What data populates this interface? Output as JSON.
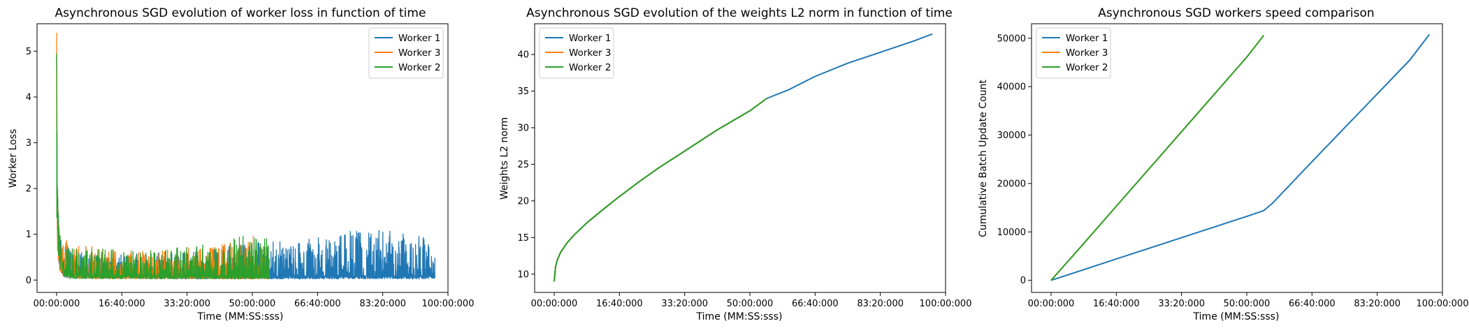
{
  "colors": {
    "Worker 1": "#1f77b4",
    "Worker 3": "#ff7f0e",
    "Worker 2": "#2ca02c"
  },
  "chart_data": [
    {
      "type": "line",
      "title": "Asynchronous SGD evolution of worker loss in function of time",
      "xlabel": "Time (MM:SS:sss)",
      "ylabel": "Worker Loss",
      "xlim": [
        -300,
        6000
      ],
      "ylim": [
        -0.27,
        5.6
      ],
      "x_ticks": [
        0,
        1000,
        2000,
        3000,
        4000,
        5000,
        6000
      ],
      "x_tick_labels": [
        "00:00:000",
        "16:40:000",
        "33:20:000",
        "50:00:000",
        "66:40:000",
        "83:20:000",
        "100:00:000"
      ],
      "y_ticks": [
        0,
        1,
        2,
        3,
        4,
        5
      ],
      "y_tick_labels": [
        "0",
        "1",
        "2",
        "3",
        "4",
        "5"
      ],
      "legend": "top-right",
      "series": [
        {
          "name": "Worker 1",
          "x": [
            0,
            10,
            50,
            100,
            200,
            400,
            800,
            1200,
            1600,
            2000,
            2400,
            2800,
            3200,
            3300,
            3500,
            3700,
            4000,
            4300,
            4600,
            4900,
            5200,
            5500,
            5700,
            5800
          ],
          "y_base": [
            4.9,
            2.0,
            0.6,
            0.25,
            0.12,
            0.1,
            0.09,
            0.09,
            0.08,
            0.08,
            0.08,
            0.08,
            0.08,
            0.08,
            0.08,
            0.08,
            0.08,
            0.08,
            0.08,
            0.08,
            0.08,
            0.08,
            0.08,
            0.08
          ],
          "y_peak": [
            4.9,
            1.4,
            0.95,
            0.8,
            0.7,
            0.6,
            0.55,
            0.6,
            0.6,
            0.65,
            0.7,
            0.8,
            0.9,
            0.9,
            0.85,
            0.8,
            1.0,
            0.95,
            1.15,
            1.1,
            1.1,
            1.05,
            0.9,
            0.55
          ]
        },
        {
          "name": "Worker 3",
          "x": [
            0,
            10,
            50,
            100,
            200,
            400,
            800,
            1200,
            1600,
            2000,
            2400,
            2800,
            3100,
            3260
          ],
          "y_base": [
            5.4,
            2.0,
            0.6,
            0.25,
            0.12,
            0.1,
            0.09,
            0.09,
            0.08,
            0.08,
            0.08,
            0.08,
            0.08,
            0.08
          ],
          "y_peak": [
            5.4,
            1.3,
            1.0,
            0.9,
            0.85,
            0.75,
            0.7,
            0.65,
            0.65,
            0.7,
            0.75,
            0.9,
            1.0,
            0.9
          ]
        },
        {
          "name": "Worker 2",
          "x": [
            0,
            10,
            50,
            100,
            200,
            400,
            800,
            1200,
            1600,
            2000,
            2400,
            2800,
            3100,
            3260
          ],
          "y_base": [
            4.95,
            2.0,
            0.6,
            0.25,
            0.12,
            0.1,
            0.09,
            0.09,
            0.08,
            0.08,
            0.08,
            0.08,
            0.08,
            0.08
          ],
          "y_peak": [
            4.95,
            1.3,
            1.0,
            0.85,
            0.8,
            0.7,
            0.7,
            0.65,
            0.65,
            0.75,
            0.8,
            0.95,
            1.02,
            0.9
          ]
        }
      ]
    },
    {
      "type": "line",
      "title": "Asynchronous SGD evolution of the weights L2 norm in function of time",
      "xlabel": "Time (MM:SS:sss)",
      "ylabel": "Weights L2 norm",
      "xlim": [
        -300,
        6000
      ],
      "ylim": [
        7.5,
        44.2
      ],
      "x_ticks": [
        0,
        1000,
        2000,
        3000,
        4000,
        5000,
        6000
      ],
      "x_tick_labels": [
        "00:00:000",
        "16:40:000",
        "33:20:000",
        "50:00:000",
        "66:40:000",
        "83:20:000",
        "100:00:000"
      ],
      "y_ticks": [
        10,
        15,
        20,
        25,
        30,
        35,
        40
      ],
      "y_tick_labels": [
        "10",
        "15",
        "20",
        "25",
        "30",
        "35",
        "40"
      ],
      "legend": "top-left",
      "series": [
        {
          "name": "Worker 1",
          "x": [
            0,
            20,
            50,
            100,
            200,
            300,
            500,
            800,
            1000,
            1300,
            1600,
            2000,
            2500,
            3000,
            3260,
            3600,
            4000,
            4500,
            5000,
            5500,
            5800
          ],
          "y": [
            9.0,
            11.0,
            12.0,
            13.0,
            14.3,
            15.3,
            17.0,
            19.2,
            20.6,
            22.6,
            24.5,
            26.8,
            29.7,
            32.3,
            34.0,
            35.2,
            37.0,
            38.8,
            40.3,
            41.8,
            42.8
          ]
        },
        {
          "name": "Worker 3",
          "x": [
            0,
            20,
            50,
            100,
            200,
            300,
            500,
            800,
            1000,
            1300,
            1600,
            2000,
            2500,
            3000,
            3260
          ],
          "y": [
            9.0,
            11.0,
            12.0,
            13.0,
            14.3,
            15.3,
            17.0,
            19.2,
            20.6,
            22.6,
            24.5,
            26.8,
            29.7,
            32.3,
            34.0
          ]
        },
        {
          "name": "Worker 2",
          "x": [
            0,
            20,
            50,
            100,
            200,
            300,
            500,
            800,
            1000,
            1300,
            1600,
            2000,
            2500,
            3000,
            3260
          ],
          "y": [
            9.0,
            11.0,
            12.0,
            13.0,
            14.3,
            15.3,
            17.0,
            19.2,
            20.6,
            22.6,
            24.5,
            26.8,
            29.7,
            32.3,
            34.0
          ]
        }
      ]
    },
    {
      "type": "line",
      "title": "Asynchronous SGD workers speed comparison",
      "xlabel": "Time (MM:SS:sss)",
      "ylabel": "Cumulative Batch Update Count",
      "xlim": [
        -300,
        6000
      ],
      "ylim": [
        -2500,
        53000
      ],
      "x_ticks": [
        0,
        1000,
        2000,
        3000,
        4000,
        5000,
        6000
      ],
      "x_tick_labels": [
        "00:00:000",
        "16:40:000",
        "33:20:000",
        "50:00:000",
        "66:40:000",
        "83:20:000",
        "100:00:000"
      ],
      "y_ticks": [
        0,
        10000,
        20000,
        30000,
        40000,
        50000
      ],
      "y_tick_labels": [
        "0",
        "10000",
        "20000",
        "30000",
        "40000",
        "50000"
      ],
      "legend": "top-left",
      "series": [
        {
          "name": "Worker 1",
          "x": [
            0,
            1000,
            2000,
            3000,
            3260,
            3400,
            4000,
            4500,
            5000,
            5500,
            5800
          ],
          "y": [
            0,
            4400,
            8800,
            13200,
            14400,
            16000,
            24500,
            31500,
            38500,
            45500,
            50800
          ]
        },
        {
          "name": "Worker 3",
          "x": [
            0,
            500,
            1000,
            1500,
            2000,
            2500,
            3000,
            3260
          ],
          "y": [
            0,
            7600,
            15300,
            23000,
            30700,
            38400,
            46100,
            50600
          ]
        },
        {
          "name": "Worker 2",
          "x": [
            0,
            500,
            1000,
            1500,
            2000,
            2500,
            3000,
            3260
          ],
          "y": [
            0,
            7600,
            15300,
            23000,
            30700,
            38400,
            46100,
            50600
          ]
        }
      ]
    }
  ]
}
